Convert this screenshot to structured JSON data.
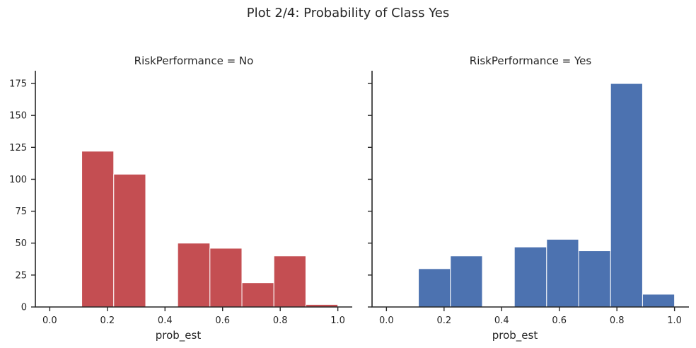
{
  "suptitle": "Plot 2/4: Probability of Class Yes",
  "chart_data": [
    {
      "type": "bar",
      "title": "RiskPerformance = No",
      "xlabel": "prob_est",
      "ylabel": "",
      "color": "#c44e52",
      "xlim": [
        -0.05,
        1.05
      ],
      "ylim": [
        0,
        185
      ],
      "xticks": [
        "0.0",
        "0.2",
        "0.4",
        "0.6",
        "0.8",
        "1.0"
      ],
      "yticks": [
        "0",
        "25",
        "50",
        "75",
        "100",
        "125",
        "150",
        "175"
      ],
      "bins": [
        {
          "x0": 0.0,
          "x1": 0.111,
          "value": 0
        },
        {
          "x0": 0.111,
          "x1": 0.222,
          "value": 122
        },
        {
          "x0": 0.222,
          "x1": 0.333,
          "value": 104
        },
        {
          "x0": 0.333,
          "x1": 0.444,
          "value": 0
        },
        {
          "x0": 0.444,
          "x1": 0.556,
          "value": 50
        },
        {
          "x0": 0.556,
          "x1": 0.667,
          "value": 46
        },
        {
          "x0": 0.667,
          "x1": 0.778,
          "value": 19
        },
        {
          "x0": 0.778,
          "x1": 0.889,
          "value": 40
        },
        {
          "x0": 0.889,
          "x1": 1.0,
          "value": 2
        }
      ]
    },
    {
      "type": "bar",
      "title": "RiskPerformance = Yes",
      "xlabel": "prob_est",
      "ylabel": "",
      "color": "#4c72b0",
      "xlim": [
        -0.05,
        1.05
      ],
      "ylim": [
        0,
        185
      ],
      "xticks": [
        "0.0",
        "0.2",
        "0.4",
        "0.6",
        "0.8",
        "1.0"
      ],
      "yticks": [
        "0",
        "25",
        "50",
        "75",
        "100",
        "125",
        "150",
        "175"
      ],
      "bins": [
        {
          "x0": 0.0,
          "x1": 0.111,
          "value": 0
        },
        {
          "x0": 0.111,
          "x1": 0.222,
          "value": 30
        },
        {
          "x0": 0.222,
          "x1": 0.333,
          "value": 40
        },
        {
          "x0": 0.333,
          "x1": 0.444,
          "value": 0
        },
        {
          "x0": 0.444,
          "x1": 0.556,
          "value": 47
        },
        {
          "x0": 0.556,
          "x1": 0.667,
          "value": 53
        },
        {
          "x0": 0.667,
          "x1": 0.778,
          "value": 44
        },
        {
          "x0": 0.778,
          "x1": 0.889,
          "value": 175
        },
        {
          "x0": 0.889,
          "x1": 1.0,
          "value": 10
        }
      ]
    }
  ]
}
